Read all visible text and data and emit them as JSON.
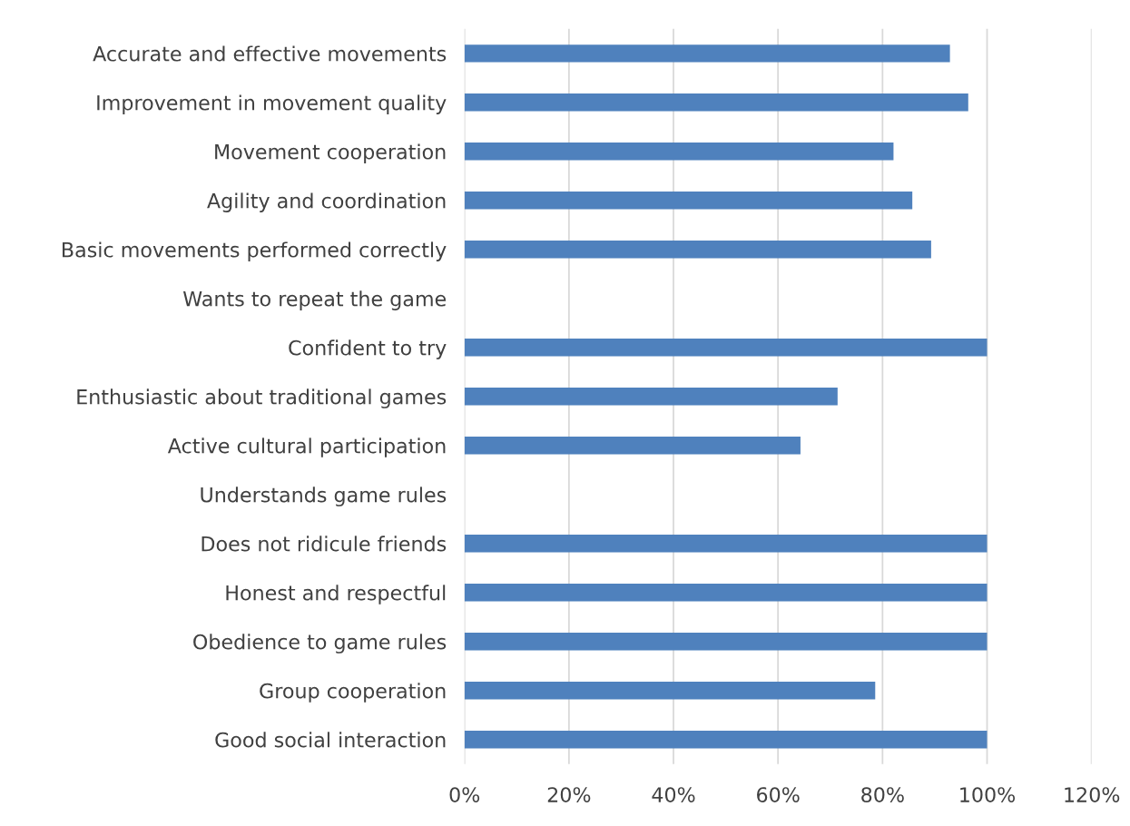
{
  "chart_data": {
    "type": "bar",
    "orientation": "horizontal",
    "categories": [
      "Accurate and effective movements",
      "Improvement in movement quality",
      "Movement cooperation",
      "Agility and coordination",
      "Basic movements performed correctly",
      "Wants to repeat the game",
      "Confident to try",
      "Enthusiastic about traditional games",
      "Active cultural participation",
      "Understands game rules",
      "Does not ridicule friends",
      "Honest and respectful",
      "Obedience to game rules",
      "Group cooperation",
      "Good social interaction"
    ],
    "values": [
      92.9,
      96.4,
      82.1,
      85.7,
      89.3,
      0,
      100,
      71.4,
      64.3,
      0,
      100,
      100,
      100,
      78.6,
      100
    ],
    "color": "#4f81bd",
    "xlim": [
      0,
      120
    ],
    "xticks": [
      {
        "value": 0,
        "label": "0%"
      },
      {
        "value": 20,
        "label": "20%"
      },
      {
        "value": 40,
        "label": "40%"
      },
      {
        "value": 60,
        "label": "60%"
      },
      {
        "value": 80,
        "label": "80%"
      },
      {
        "value": 100,
        "label": "100%"
      },
      {
        "value": 120,
        "label": "120%"
      }
    ],
    "grid": "x"
  }
}
